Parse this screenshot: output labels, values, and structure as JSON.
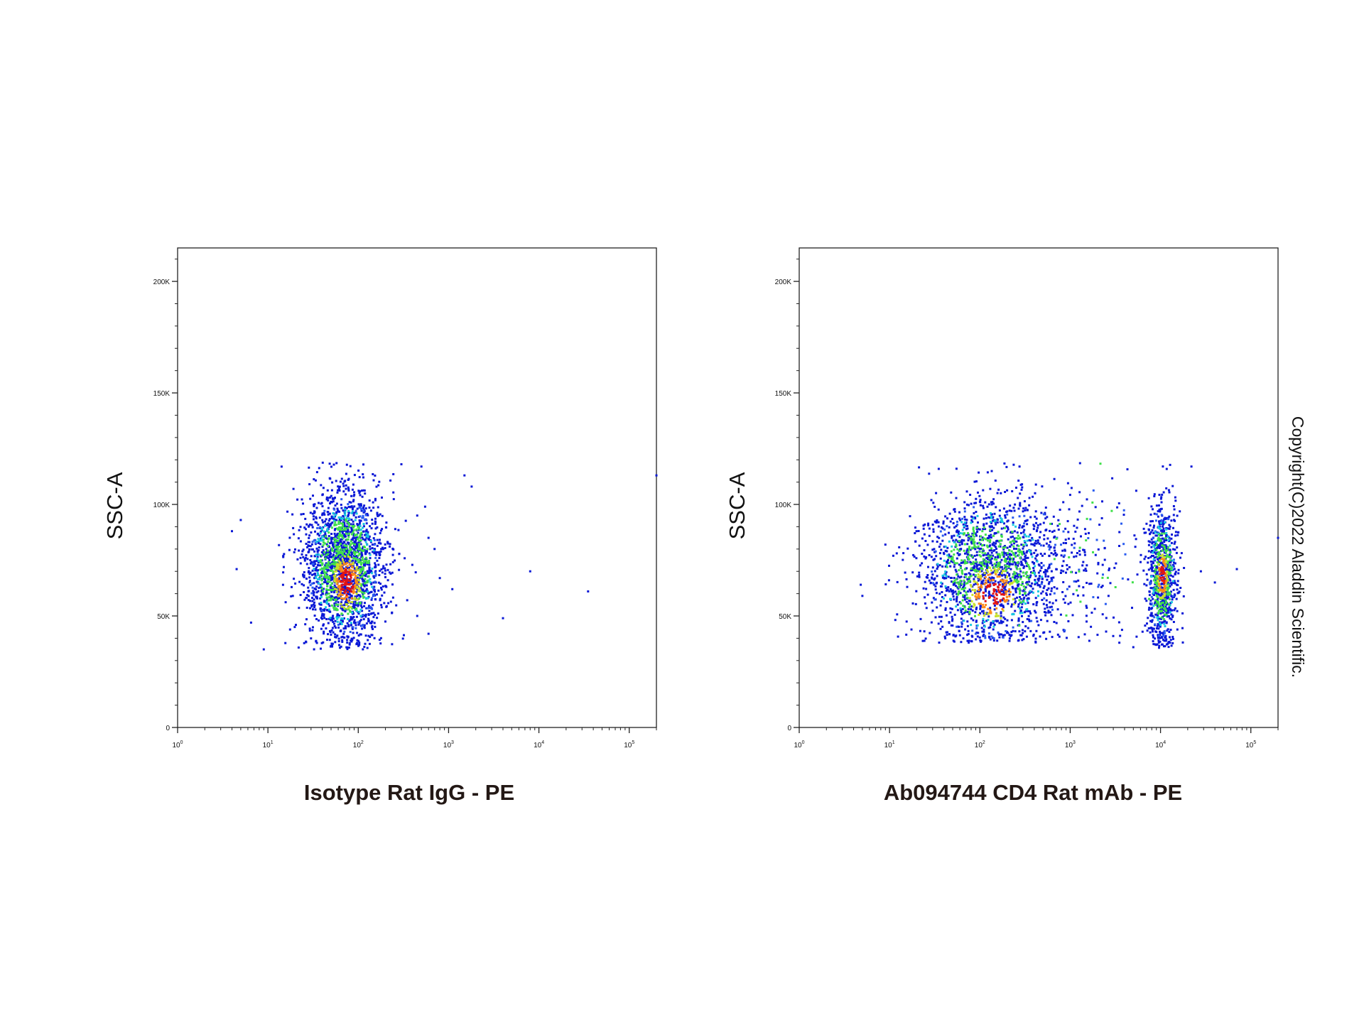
{
  "copyright": "Copyright(C)2022 Aladdin Scientific.",
  "density_colors": [
    "#0a18d6",
    "#2a5cf0",
    "#19c8e0",
    "#3fe04a",
    "#c8e02a",
    "#ff8a1a",
    "#e11414"
  ],
  "chart_data": [
    {
      "type": "scatter",
      "subtype": "flow-cytometry density dot plot",
      "xlabel": "Isotype Rat IgG - PE",
      "ylabel": "SSC-A",
      "xscale": "log",
      "xlim": [
        1,
        200000
      ],
      "ylim": [
        0,
        215000
      ],
      "x_ticks": [
        {
          "value": 1,
          "base": "10",
          "exp": "0"
        },
        {
          "value": 10,
          "base": "10",
          "exp": "1"
        },
        {
          "value": 100,
          "base": "10",
          "exp": "2"
        },
        {
          "value": 1000,
          "base": "10",
          "exp": "3"
        },
        {
          "value": 10000,
          "base": "10",
          "exp": "4"
        },
        {
          "value": 100000,
          "base": "10",
          "exp": "5"
        }
      ],
      "y_ticks": [
        {
          "value": 0,
          "label": "0"
        },
        {
          "value": 50000,
          "label": "50K"
        },
        {
          "value": 100000,
          "label": "100K"
        },
        {
          "value": 150000,
          "label": "150K"
        },
        {
          "value": 200000,
          "label": "200K"
        }
      ],
      "populations": [
        {
          "x_center": 70,
          "x_log_sd": 0.22,
          "y_center": 72000,
          "y_sd": 17000,
          "y_min": 35000,
          "y_max": 119000,
          "count": 2300,
          "peak": [
            75,
            65000
          ]
        }
      ],
      "outliers": [
        [
          4,
          88000
        ],
        [
          4.5,
          71000
        ],
        [
          5,
          93000
        ],
        [
          6.5,
          47000
        ],
        [
          9,
          35000
        ],
        [
          700,
          80000
        ],
        [
          1500,
          113000
        ],
        [
          1800,
          108000
        ],
        [
          4000,
          49000
        ],
        [
          8000,
          70000
        ],
        [
          35000,
          61000
        ],
        [
          200000,
          113000
        ],
        [
          300,
          118000
        ],
        [
          500,
          117000
        ],
        [
          450,
          95000
        ],
        [
          550,
          99000
        ],
        [
          600,
          85000
        ],
        [
          800,
          67000
        ],
        [
          450,
          50000
        ],
        [
          600,
          42000
        ],
        [
          1100,
          62000
        ]
      ]
    },
    {
      "type": "scatter",
      "subtype": "flow-cytometry density dot plot",
      "xlabel": "Ab094744 CD4 Rat mAb - PE",
      "ylabel": "SSC-A",
      "xscale": "log",
      "xlim": [
        1,
        200000
      ],
      "ylim": [
        0,
        215000
      ],
      "x_ticks": [
        {
          "value": 1,
          "base": "10",
          "exp": "0"
        },
        {
          "value": 10,
          "base": "10",
          "exp": "1"
        },
        {
          "value": 100,
          "base": "10",
          "exp": "2"
        },
        {
          "value": 1000,
          "base": "10",
          "exp": "3"
        },
        {
          "value": 10000,
          "base": "10",
          "exp": "4"
        },
        {
          "value": 100000,
          "base": "10",
          "exp": "5"
        }
      ],
      "y_ticks": [
        {
          "value": 0,
          "label": "0"
        },
        {
          "value": 50000,
          "label": "50K"
        },
        {
          "value": 100000,
          "label": "100K"
        },
        {
          "value": 150000,
          "label": "150K"
        },
        {
          "value": 200000,
          "label": "200K"
        }
      ],
      "populations": [
        {
          "x_center": 130,
          "x_log_sd": 0.38,
          "y_center": 70000,
          "y_sd": 17000,
          "y_min": 38000,
          "y_max": 119000,
          "count": 1900,
          "peak": [
            140,
            60000
          ]
        },
        {
          "x_center": 1200,
          "x_log_sd": 0.42,
          "y_center": 76000,
          "y_sd": 19000,
          "y_min": 40000,
          "y_max": 119000,
          "count": 220,
          "peak": null
        },
        {
          "x_center": 10500,
          "x_log_sd": 0.08,
          "y_center": 68000,
          "y_sd": 16000,
          "y_min": 35000,
          "y_max": 119000,
          "count": 900,
          "peak": [
            10500,
            68000
          ]
        }
      ],
      "outliers": [
        [
          4.8,
          64000
        ],
        [
          5,
          59000
        ],
        [
          9,
          82000
        ],
        [
          11,
          77000
        ],
        [
          22000,
          117000
        ],
        [
          28000,
          70000
        ],
        [
          40000,
          65000
        ],
        [
          70000,
          71000
        ],
        [
          200000,
          85000
        ],
        [
          2500,
          43000
        ],
        [
          3500,
          38000
        ],
        [
          5000,
          36000
        ]
      ]
    }
  ]
}
